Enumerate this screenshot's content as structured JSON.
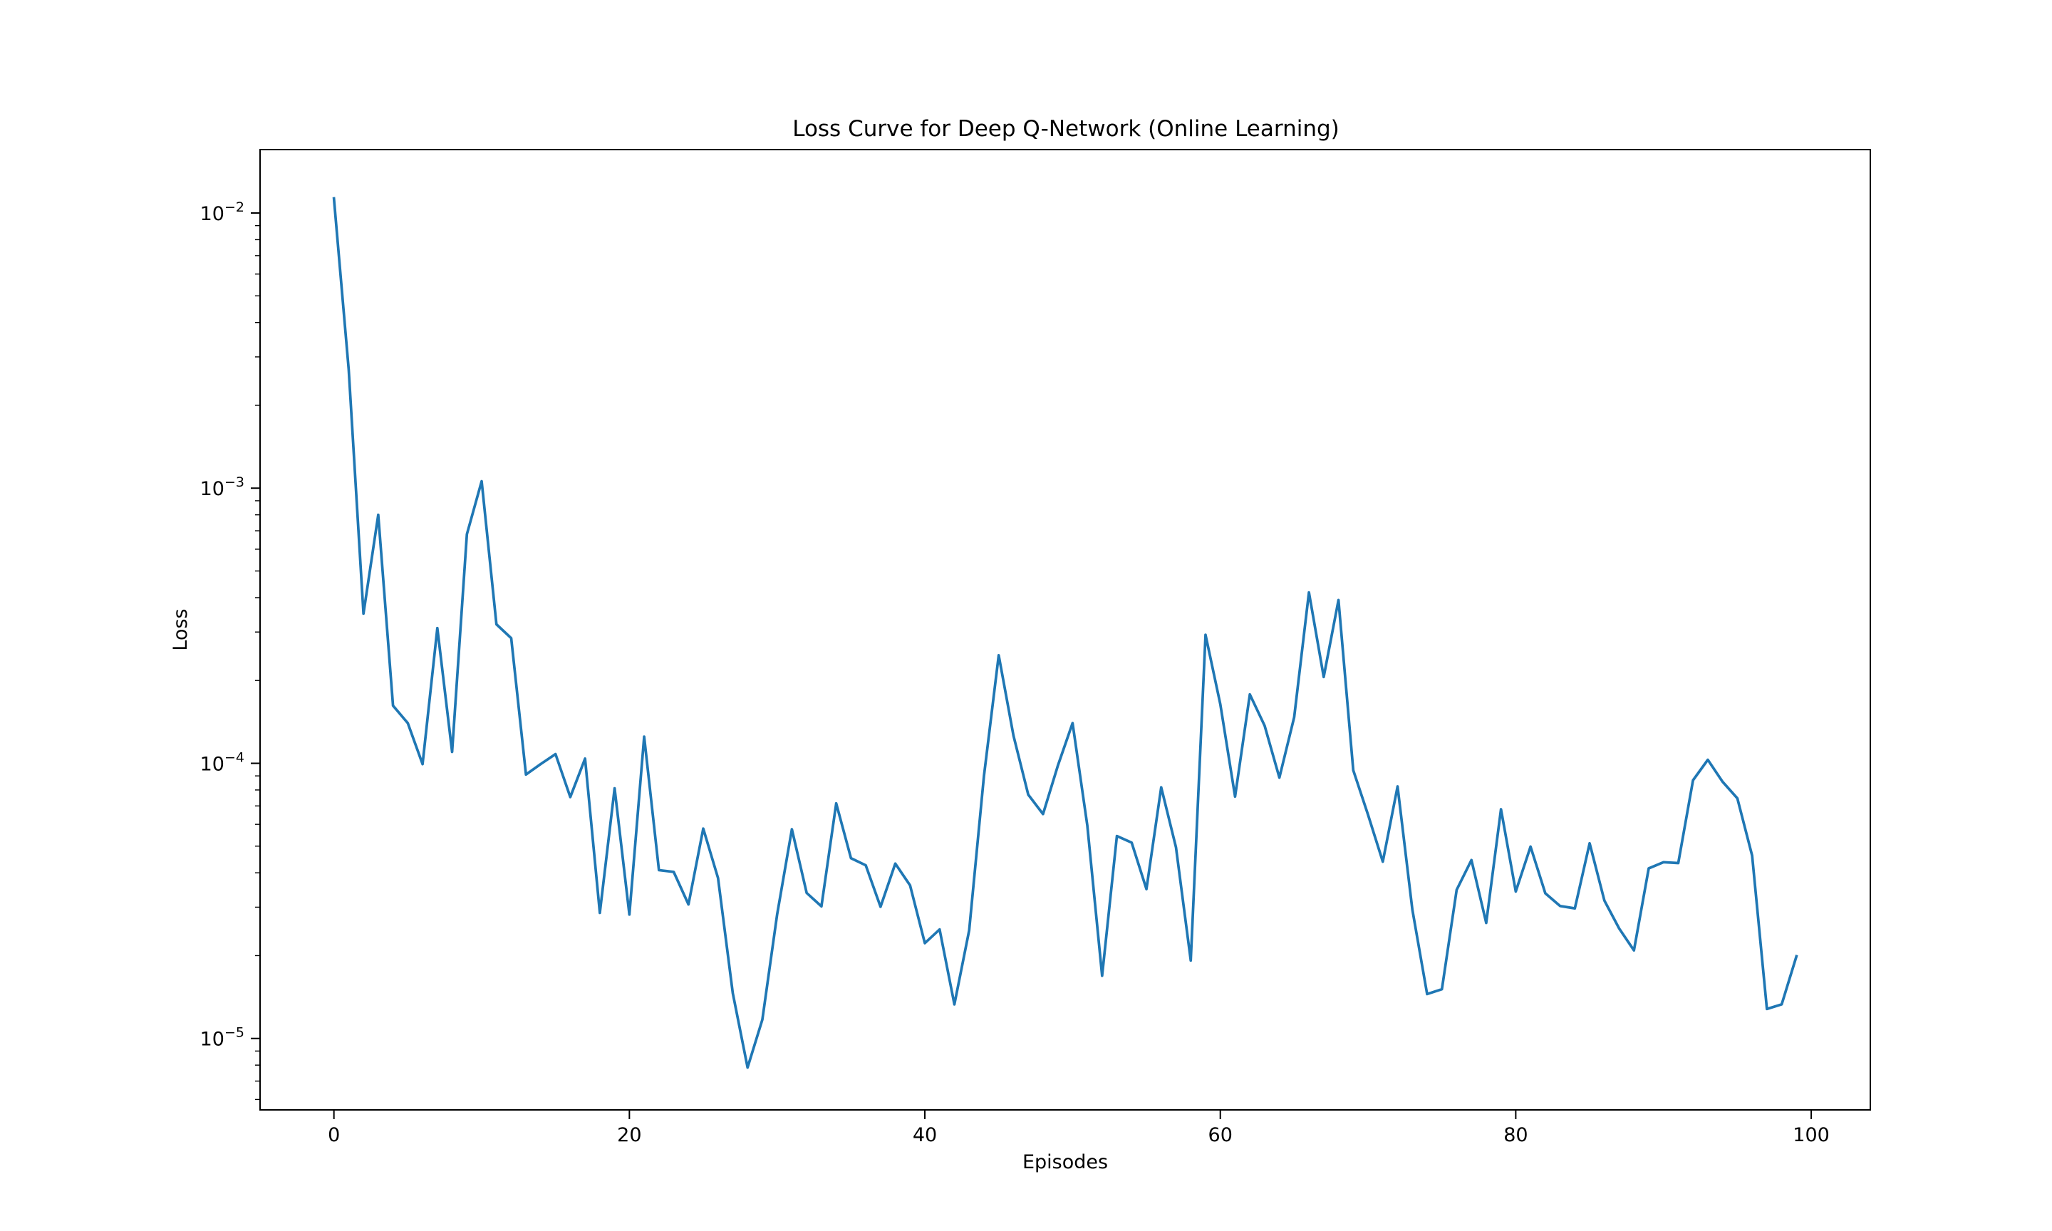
{
  "chart_data": {
    "type": "line",
    "title": "Loss Curve for Deep Q-Network (Online Learning)",
    "xlabel": "Episodes",
    "ylabel": "Loss",
    "xscale": "linear",
    "yscale": "log",
    "xlim": [
      -5,
      104
    ],
    "ylim": [
      5.5e-06,
      0.017
    ],
    "grid": false,
    "legend": "none",
    "x_ticks": [
      {
        "value": 0,
        "label": "0"
      },
      {
        "value": 20,
        "label": "20"
      },
      {
        "value": 40,
        "label": "40"
      },
      {
        "value": 60,
        "label": "60"
      },
      {
        "value": 80,
        "label": "80"
      },
      {
        "value": 100,
        "label": "100"
      }
    ],
    "y_ticks": [
      {
        "value": 0.01,
        "base": "10",
        "exponent": "−2"
      },
      {
        "value": 0.001,
        "base": "10",
        "exponent": "−3"
      },
      {
        "value": 0.0001,
        "base": "10",
        "exponent": "−4"
      },
      {
        "value": 1e-05,
        "base": "10",
        "exponent": "−5"
      }
    ],
    "series": [
      {
        "color": "#1f77b4",
        "x": [
          0,
          1,
          2,
          3,
          4,
          5,
          6,
          7,
          8,
          9,
          10,
          11,
          12,
          13,
          14,
          15,
          16,
          17,
          18,
          19,
          20,
          21,
          22,
          23,
          24,
          25,
          26,
          27,
          28,
          29,
          30,
          31,
          32,
          33,
          34,
          35,
          36,
          37,
          38,
          39,
          40,
          41,
          42,
          43,
          44,
          45,
          46,
          47,
          48,
          49,
          50,
          51,
          52,
          53,
          54,
          55,
          56,
          57,
          58,
          59,
          60,
          61,
          62,
          63,
          64,
          65,
          66,
          67,
          68,
          69,
          70,
          71,
          72,
          73,
          74,
          75,
          76,
          77,
          78,
          79,
          80,
          81,
          82,
          83,
          84,
          85,
          86,
          87,
          88,
          89,
          90,
          91,
          92,
          93,
          94,
          95,
          96,
          97,
          98,
          99
        ],
        "y": [
          0.0113,
          0.0027,
          0.00035,
          0.0008,
          0.000162,
          0.00014,
          9.93e-05,
          0.00031,
          0.00011,
          0.00068,
          0.00106,
          0.00032,
          0.000285,
          9.1e-05,
          9.94e-05,
          0.000108,
          7.54e-05,
          0.000104,
          2.86e-05,
          8.11e-05,
          2.82e-05,
          0.000125,
          4.09e-05,
          4.03e-05,
          3.07e-05,
          5.79e-05,
          3.83e-05,
          1.46e-05,
          7.84e-06,
          1.17e-05,
          2.82e-05,
          5.76e-05,
          3.38e-05,
          3.02e-05,
          7.15e-05,
          4.52e-05,
          4.26e-05,
          3.01e-05,
          4.32e-05,
          3.6e-05,
          2.22e-05,
          2.49e-05,
          1.33e-05,
          2.47e-05,
          8.98e-05,
          0.000247,
          0.000126,
          7.69e-05,
          6.54e-05,
          9.79e-05,
          0.00014,
          5.93e-05,
          1.69e-05,
          5.44e-05,
          5.15e-05,
          3.49e-05,
          8.18e-05,
          4.95e-05,
          1.92e-05,
          0.000293,
          0.000164,
          7.57e-05,
          0.000178,
          0.000137,
          8.87e-05,
          0.000147,
          0.000418,
          0.000206,
          0.000392,
          9.44e-05,
          6.5e-05,
          4.39e-05,
          8.24e-05,
          2.94e-05,
          1.45e-05,
          1.51e-05,
          3.47e-05,
          4.45e-05,
          2.63e-05,
          6.81e-05,
          3.42e-05,
          4.98e-05,
          3.37e-05,
          3.03e-05,
          2.97e-05,
          5.12e-05,
          3.17e-05,
          2.51e-05,
          2.09e-05,
          4.15e-05,
          4.37e-05,
          4.34e-05,
          8.68e-05,
          0.000103,
          8.57e-05,
          7.46e-05,
          4.62e-05,
          1.28e-05,
          1.33e-05,
          1.99e-05
        ]
      }
    ]
  }
}
